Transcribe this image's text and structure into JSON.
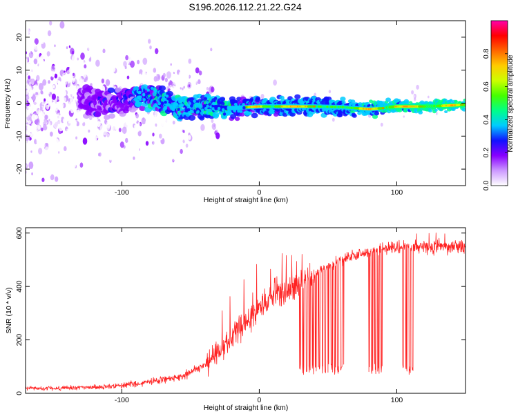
{
  "page_title": "S196.2026.112.21.22.G24",
  "chart_data": [
    {
      "type": "heatmap",
      "title": "S196.2026.112.21.22.G24",
      "xlabel": "Height of straight line (km)",
      "ylabel": "Frequency (Hz)",
      "xlim": [
        -170,
        150
      ],
      "ylim": [
        -25,
        25
      ],
      "xticks": [
        -100,
        0,
        100
      ],
      "yticks": [
        -20,
        -10,
        0,
        10,
        20
      ],
      "grid": false,
      "colorbar": {
        "label": "Normalized spectral amplitude",
        "range": [
          0,
          1
        ],
        "ticks": [
          0.0,
          0.2,
          0.4,
          0.6,
          0.8
        ],
        "tick_labels": [
          "0.0",
          "0.2",
          "0.4",
          "0.6",
          "0.8"
        ],
        "colors": [
          "#ffffff",
          "#cc99ff",
          "#8800ff",
          "#1111ff",
          "#00ccff",
          "#00ff88",
          "#44ff00",
          "#ccff00",
          "#ffcc00",
          "#ff6600",
          "#ff0000",
          "#ff00aa"
        ]
      },
      "description_of_content": {
        "ridge_center_hz": [
          [
            -170,
            0.0
          ],
          [
            -100,
            0.5
          ],
          [
            -80,
            2.5
          ],
          [
            -60,
            -1.5
          ],
          [
            -40,
            -1.0
          ],
          [
            -20,
            -1.5
          ],
          [
            0,
            -1.0
          ],
          [
            20,
            -1.0
          ],
          [
            40,
            -1.0
          ],
          [
            60,
            -1.2
          ],
          [
            80,
            -1.8
          ],
          [
            90,
            -1.5
          ],
          [
            100,
            -1.0
          ],
          [
            120,
            -1.0
          ],
          [
            150,
            -0.5
          ]
        ],
        "peak_amplitude_segments_km": [
          [
            -10,
            5
          ],
          [
            12,
            40
          ],
          [
            70,
            90
          ],
          [
            95,
            120
          ],
          [
            130,
            150
          ]
        ]
      }
    },
    {
      "type": "line",
      "xlabel": "Height of straight line (km)",
      "ylabel": "SNR (10 * v/v)",
      "xlim": [
        -170,
        150
      ],
      "ylim": [
        0,
        620
      ],
      "xticks": [
        -100,
        0,
        100
      ],
      "yticks": [
        0,
        200,
        400,
        600
      ],
      "color": "#ff2222",
      "grid": false,
      "series": [
        {
          "name": "SNR",
          "envelope_x": [
            -170,
            -140,
            -110,
            -90,
            -70,
            -55,
            -45,
            -35,
            -25,
            -15,
            -5,
            5,
            15,
            25,
            35,
            45,
            55,
            65,
            75,
            85,
            95,
            105,
            115,
            125,
            135,
            150
          ],
          "envelope_mean": [
            18,
            20,
            25,
            35,
            50,
            65,
            90,
            130,
            180,
            240,
            290,
            340,
            370,
            400,
            430,
            460,
            490,
            510,
            525,
            535,
            540,
            545,
            550,
            545,
            550,
            550
          ],
          "spike_max": 615,
          "dropouts_km": [
            [
              28,
              62
            ],
            [
              78,
              90
            ],
            [
              103,
              112
            ]
          ],
          "dropout_floor": 70
        }
      ]
    }
  ]
}
